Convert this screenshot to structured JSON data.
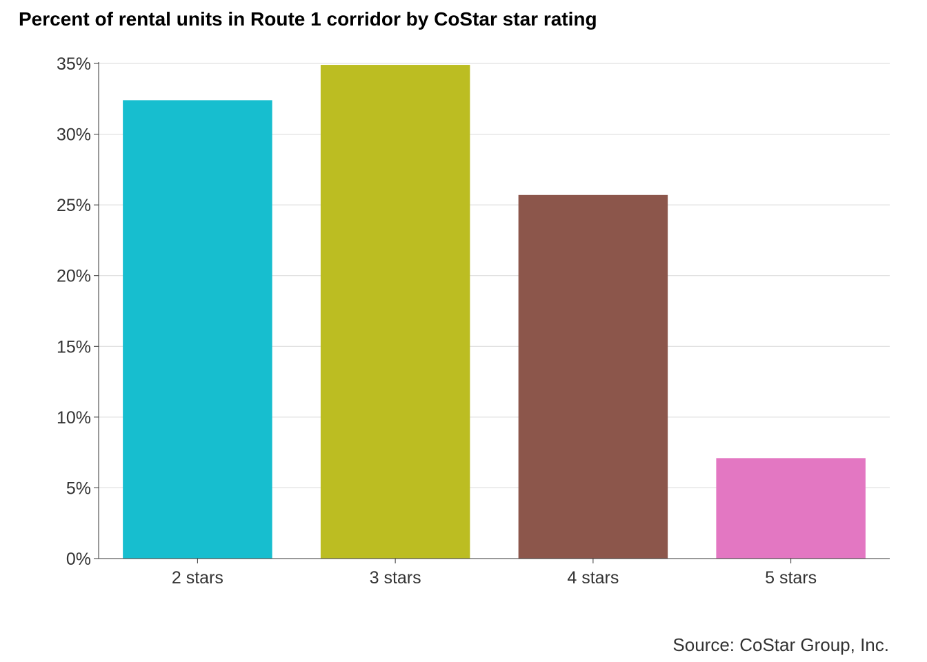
{
  "chart_data": {
    "type": "bar",
    "title": "Percent of rental units in Route 1 corridor by CoStar star rating",
    "categories": [
      "2 stars",
      "3 stars",
      "4 stars",
      "5 stars"
    ],
    "values": [
      32.4,
      34.9,
      25.7,
      7.1
    ],
    "colors": [
      "#17becf",
      "#bcbd22",
      "#8c564b",
      "#e377c2"
    ],
    "ylim": [
      0,
      35
    ],
    "yticks": [
      0,
      5,
      10,
      15,
      20,
      25,
      30,
      35
    ],
    "ytick_suffix": "%",
    "xlabel": "",
    "ylabel": "",
    "grid": true,
    "legend": "none"
  },
  "source": "Source: CoStar Group, Inc."
}
